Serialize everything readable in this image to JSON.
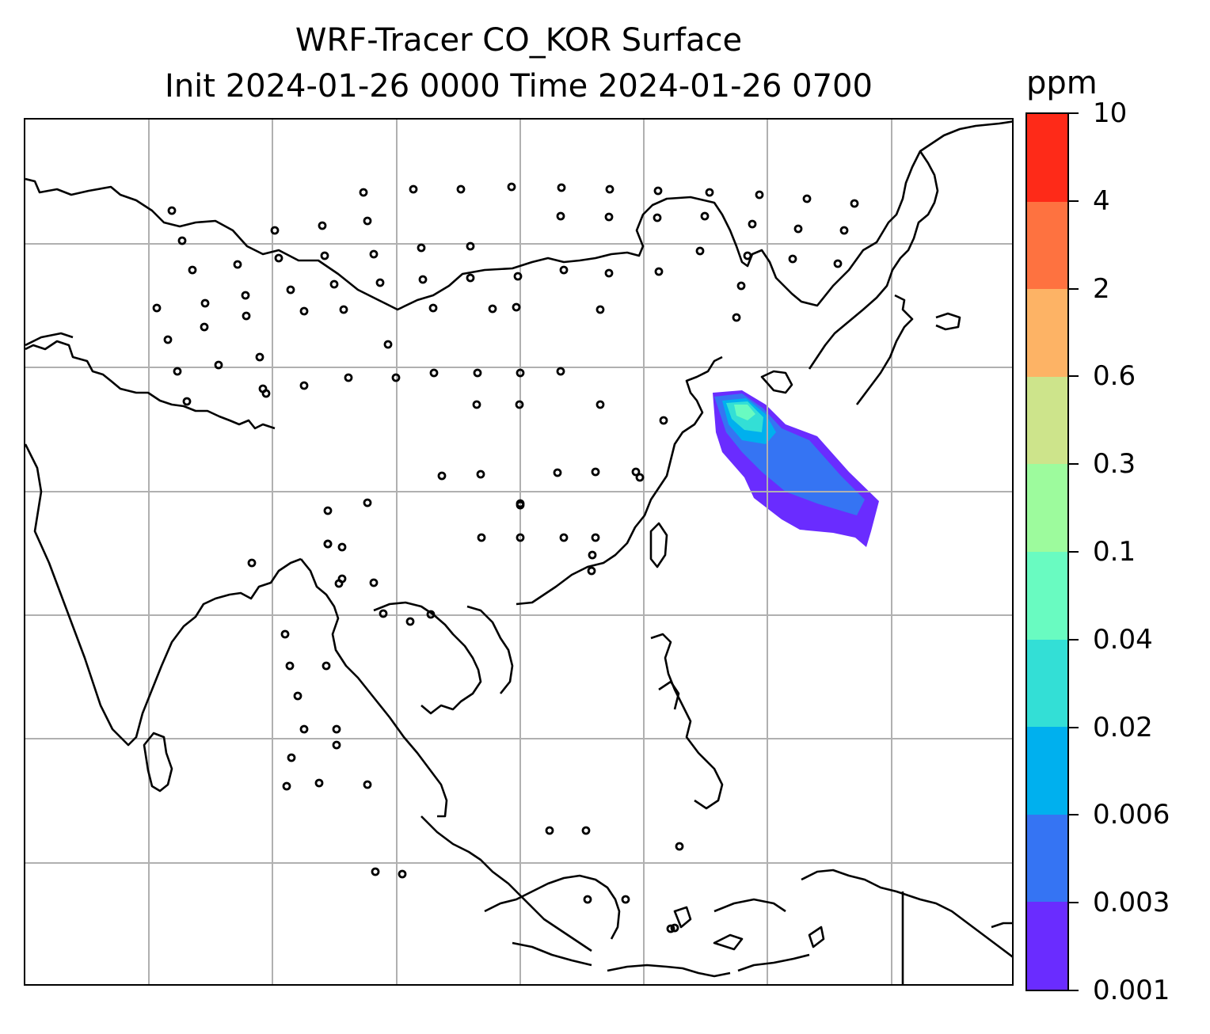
{
  "title": {
    "line1": "WRF-Tracer CO_KOR Surface",
    "line2": "Init 2024-01-26 0000 Time 2024-01-26 0700"
  },
  "colorbar": {
    "unit": "ppm",
    "levels": [
      "0.001",
      "0.003",
      "0.006",
      "0.02",
      "0.04",
      "0.1",
      "0.3",
      "0.6",
      "2",
      "4",
      "10"
    ],
    "colors": [
      "#6a2cff",
      "#3574f3",
      "#00b0ee",
      "#33dfd6",
      "#69fbc1",
      "#9dfb9d",
      "#cde48b",
      "#fdb365",
      "#fe7240",
      "#fe2a18"
    ]
  },
  "map": {
    "gridlines": true,
    "plume_colors": [
      "#6a2cff",
      "#3574f3",
      "#00b0ee",
      "#33dfd6",
      "#69fbc1"
    ],
    "icons": [
      "wind-barb-icon",
      "calm-wind-circle-icon",
      "coastline-icon"
    ]
  }
}
